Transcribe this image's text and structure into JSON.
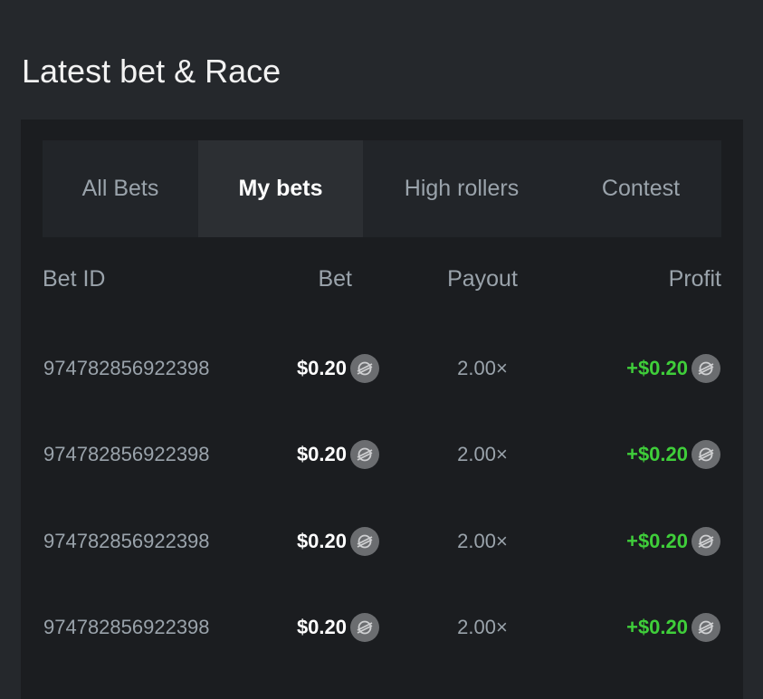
{
  "title": "Latest bet & Race",
  "tabs": [
    {
      "label": "All Bets",
      "active": false
    },
    {
      "label": "My bets",
      "active": true
    },
    {
      "label": "High rollers",
      "active": false
    },
    {
      "label": "Contest",
      "active": false
    }
  ],
  "columns": {
    "bet_id": "Bet ID",
    "bet": "Bet",
    "payout": "Payout",
    "profit": "Profit"
  },
  "rows": [
    {
      "bet_id": "974782856922398",
      "bet": "$0.20",
      "payout": "2.00×",
      "profit": "+$0.20"
    },
    {
      "bet_id": "974782856922398",
      "bet": "$0.20",
      "payout": "2.00×",
      "profit": "+$0.20"
    },
    {
      "bet_id": "974782856922398",
      "bet": "$0.20",
      "payout": "2.00×",
      "profit": "+$0.20"
    },
    {
      "bet_id": "974782856922398",
      "bet": "$0.20",
      "payout": "2.00×",
      "profit": "+$0.20"
    }
  ],
  "currency_icon": "stellar-coin-icon",
  "colors": {
    "background": "#25282c",
    "panel": "#1b1d20",
    "profit": "#3fce3a",
    "muted": "#9aa3ab"
  }
}
